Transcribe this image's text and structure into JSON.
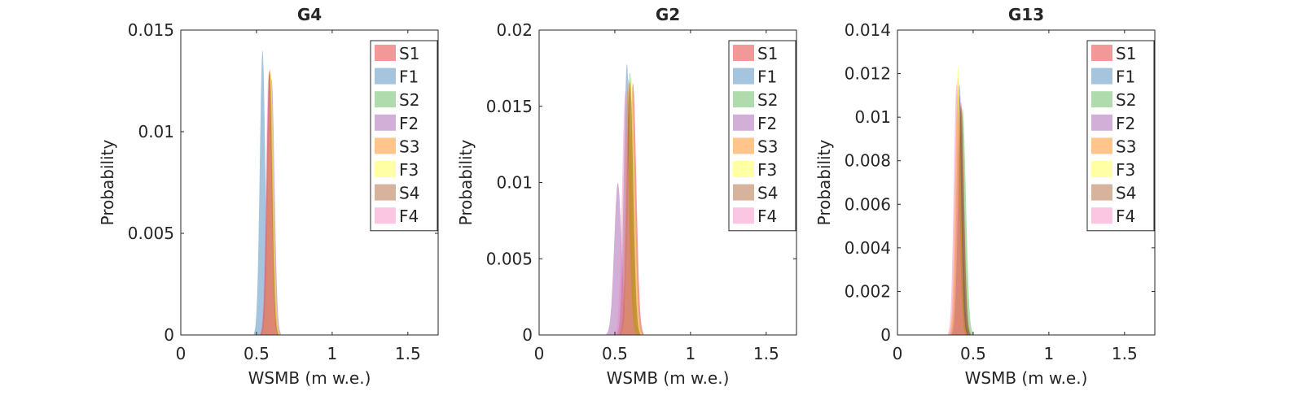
{
  "chart_data": [
    {
      "type": "area",
      "title": "G4",
      "xlabel": "WSMB (m w.e.)",
      "ylabel": "Probability",
      "xlim": [
        0,
        1.7
      ],
      "ylim": [
        0,
        0.015
      ],
      "xticks": [
        0,
        0.5,
        1,
        1.5
      ],
      "xtick_labels": [
        "0",
        "0.5",
        "1",
        "1.5"
      ],
      "yticks": [
        0,
        0.005,
        0.01,
        0.015
      ],
      "ytick_labels": [
        "0",
        "0.005",
        "0.01",
        "0.015"
      ],
      "legend_position": "top-right",
      "series": [
        {
          "name": "S1",
          "color": "#e41a1c",
          "peak_x": 0.585,
          "peak_y": 0.013,
          "sigma": 0.018
        },
        {
          "name": "F1",
          "color": "#377eb8",
          "peak_x": 0.54,
          "peak_y": 0.014,
          "sigma": 0.018
        },
        {
          "name": "S2",
          "color": "#4daf4a",
          "peak_x": 0.59,
          "peak_y": 0.0128,
          "sigma": 0.018
        },
        {
          "name": "F2",
          "color": "#984ea3",
          "peak_x": 0.6,
          "peak_y": 0.0126,
          "sigma": 0.019
        },
        {
          "name": "S3",
          "color": "#ff7f00",
          "peak_x": 0.59,
          "peak_y": 0.0131,
          "sigma": 0.018
        },
        {
          "name": "F3",
          "color": "#ffff33",
          "peak_x": 0.595,
          "peak_y": 0.0129,
          "sigma": 0.018
        },
        {
          "name": "S4",
          "color": "#a65628",
          "peak_x": 0.585,
          "peak_y": 0.013,
          "sigma": 0.018
        },
        {
          "name": "F4",
          "color": "#f781bf",
          "peak_x": 0.58,
          "peak_y": 0.0128,
          "sigma": 0.018
        }
      ]
    },
    {
      "type": "area",
      "title": "G2",
      "xlabel": "WSMB (m w.e.)",
      "ylabel": "Probability",
      "xlim": [
        0,
        1.7
      ],
      "ylim": [
        0,
        0.02
      ],
      "xticks": [
        0,
        0.5,
        1,
        1.5
      ],
      "xtick_labels": [
        "0",
        "0.5",
        "1",
        "1.5"
      ],
      "yticks": [
        0,
        0.005,
        0.01,
        0.015,
        0.02
      ],
      "ytick_labels": [
        "0",
        "0.005",
        "0.01",
        "0.015",
        "0.02"
      ],
      "legend_position": "top-right",
      "series": [
        {
          "name": "S1",
          "color": "#e41a1c",
          "peak_x": 0.62,
          "peak_y": 0.0165,
          "sigma": 0.022
        },
        {
          "name": "F1",
          "color": "#377eb8",
          "peak_x": 0.58,
          "peak_y": 0.0178,
          "sigma": 0.02
        },
        {
          "name": "S2",
          "color": "#4daf4a",
          "peak_x": 0.6,
          "peak_y": 0.0172,
          "sigma": 0.021
        },
        {
          "name": "F2",
          "color": "#984ea3",
          "peak_x": 0.52,
          "peak_y": 0.01,
          "sigma": 0.024
        },
        {
          "name": "S3",
          "color": "#ff7f00",
          "peak_x": 0.59,
          "peak_y": 0.0168,
          "sigma": 0.021
        },
        {
          "name": "F3",
          "color": "#ffff33",
          "peak_x": 0.61,
          "peak_y": 0.017,
          "sigma": 0.021
        },
        {
          "name": "S4",
          "color": "#a65628",
          "peak_x": 0.6,
          "peak_y": 0.0166,
          "sigma": 0.021
        },
        {
          "name": "F4",
          "color": "#f781bf",
          "peak_x": 0.57,
          "peak_y": 0.016,
          "sigma": 0.022
        }
      ]
    },
    {
      "type": "area",
      "title": "G13",
      "xlabel": "WSMB (m w.e.)",
      "ylabel": "Probability",
      "xlim": [
        0,
        1.7
      ],
      "ylim": [
        0,
        0.014
      ],
      "xticks": [
        0,
        0.5,
        1,
        1.5
      ],
      "xtick_labels": [
        "0",
        "0.5",
        "1",
        "1.5"
      ],
      "yticks": [
        0,
        0.002,
        0.004,
        0.006,
        0.008,
        0.01,
        0.012,
        0.014
      ],
      "ytick_labels": [
        "0",
        "0.002",
        "0.004",
        "0.006",
        "0.008",
        "0.01",
        "0.012",
        "0.014"
      ],
      "legend_position": "top-right",
      "series": [
        {
          "name": "S1",
          "color": "#e41a1c",
          "peak_x": 0.42,
          "peak_y": 0.0105,
          "sigma": 0.02
        },
        {
          "name": "F1",
          "color": "#377eb8",
          "peak_x": 0.41,
          "peak_y": 0.0115,
          "sigma": 0.019
        },
        {
          "name": "S2",
          "color": "#4daf4a",
          "peak_x": 0.43,
          "peak_y": 0.0104,
          "sigma": 0.022
        },
        {
          "name": "F2",
          "color": "#984ea3",
          "peak_x": 0.41,
          "peak_y": 0.011,
          "sigma": 0.019
        },
        {
          "name": "S3",
          "color": "#ff7f00",
          "peak_x": 0.4,
          "peak_y": 0.0118,
          "sigma": 0.018
        },
        {
          "name": "F3",
          "color": "#ffff33",
          "peak_x": 0.4,
          "peak_y": 0.0123,
          "sigma": 0.018
        },
        {
          "name": "S4",
          "color": "#a65628",
          "peak_x": 0.42,
          "peak_y": 0.0107,
          "sigma": 0.019
        },
        {
          "name": "F4",
          "color": "#f781bf",
          "peak_x": 0.39,
          "peak_y": 0.0115,
          "sigma": 0.018
        }
      ]
    }
  ]
}
